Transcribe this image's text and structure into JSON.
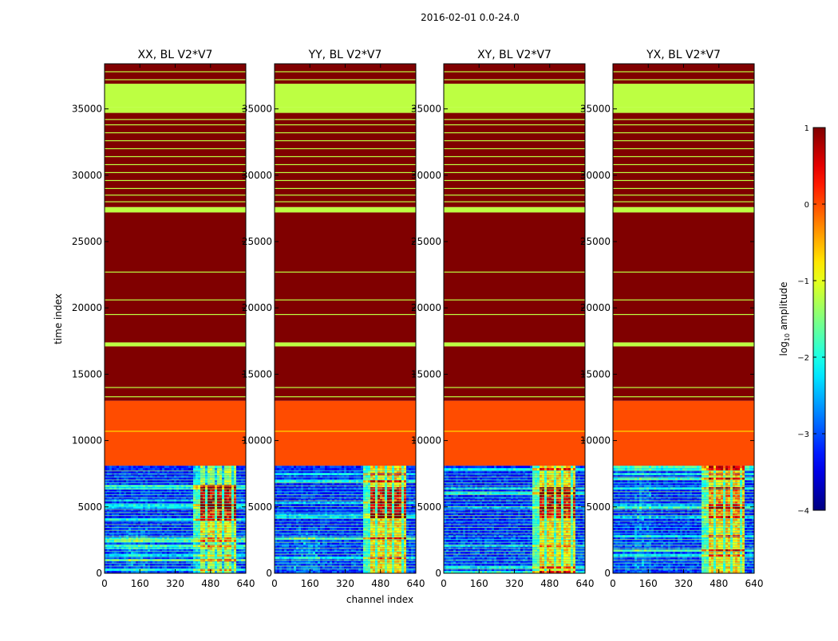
{
  "figure": {
    "suptitle": "2016-02-01 0.0-24.0",
    "xlabel": "channel index",
    "ylabel": "time index"
  },
  "chart_data": {
    "type": "heatmap",
    "x_range": [
      0,
      640
    ],
    "y_range": [
      0,
      38400
    ],
    "x_ticks": [
      0,
      160,
      320,
      480,
      640
    ],
    "y_ticks": [
      0,
      5000,
      10000,
      15000,
      20000,
      25000,
      30000,
      35000
    ],
    "panels": [
      {
        "title": "XX, BL V2*V7",
        "pol": "XX"
      },
      {
        "title": "YY, BL V2*V7",
        "pol": "YY"
      },
      {
        "title": "XY, BL V2*V7",
        "pol": "XY"
      },
      {
        "title": "YX, BL V2*V7",
        "pol": "YX"
      }
    ],
    "time_bands": [
      {
        "y0": 0,
        "y1": 8100,
        "log10_amplitude": -3.2,
        "note": "noisy spectra; bright RFI channel band 400-600"
      },
      {
        "y0": 8100,
        "y1": 13000,
        "log10_amplitude": 0.0
      },
      {
        "y0": 13000,
        "y1": 17100,
        "log10_amplitude": 1.0
      },
      {
        "y0": 17100,
        "y1": 17400,
        "log10_amplitude": -1.2
      },
      {
        "y0": 17400,
        "y1": 27200,
        "log10_amplitude": 1.0
      },
      {
        "y0": 27200,
        "y1": 27600,
        "log10_amplitude": -1.2
      },
      {
        "y0": 27600,
        "y1": 34700,
        "log10_amplitude": 1.0
      },
      {
        "y0": 34700,
        "y1": 35100,
        "log10_amplitude": -1.2
      },
      {
        "y0": 35100,
        "y1": 36900,
        "log10_amplitude": -1.2
      },
      {
        "y0": 36900,
        "y1": 38400,
        "log10_amplitude": 1.0
      }
    ],
    "thin_lines": [
      {
        "y": 10700,
        "log10_amplitude": -0.7
      },
      {
        "y": 13300,
        "log10_amplitude": -1.2
      },
      {
        "y": 14000,
        "log10_amplitude": -1.2
      },
      {
        "y": 19500,
        "log10_amplitude": -1.2
      },
      {
        "y": 20600,
        "log10_amplitude": -1.2
      },
      {
        "y": 22700,
        "log10_amplitude": -1.2
      },
      {
        "y": 28000,
        "log10_amplitude": -1.2
      },
      {
        "y": 28500,
        "log10_amplitude": -1.2
      },
      {
        "y": 29000,
        "log10_amplitude": -1.2
      },
      {
        "y": 29600,
        "log10_amplitude": -1.2
      },
      {
        "y": 30200,
        "log10_amplitude": -1.2
      },
      {
        "y": 30800,
        "log10_amplitude": -1.2
      },
      {
        "y": 31400,
        "log10_amplitude": -1.2
      },
      {
        "y": 32000,
        "log10_amplitude": -1.2
      },
      {
        "y": 32600,
        "log10_amplitude": -1.2
      },
      {
        "y": 33200,
        "log10_amplitude": -1.2
      },
      {
        "y": 33800,
        "log10_amplitude": -1.2
      },
      {
        "y": 34200,
        "log10_amplitude": -1.2
      },
      {
        "y": 37200,
        "log10_amplitude": -1.2
      },
      {
        "y": 37800,
        "log10_amplitude": -1.2
      }
    ],
    "colorbar": {
      "label": "log10 amplitude",
      "label_main": "log",
      "label_sub": "10",
      "label_rest": " amplitude",
      "range": [
        -4,
        1
      ],
      "ticks": [
        "1",
        "0",
        "−1",
        "−2",
        "−3",
        "−4"
      ],
      "tick_values": [
        1,
        0,
        -1,
        -2,
        -3,
        -4
      ],
      "colormap": "jet"
    }
  }
}
